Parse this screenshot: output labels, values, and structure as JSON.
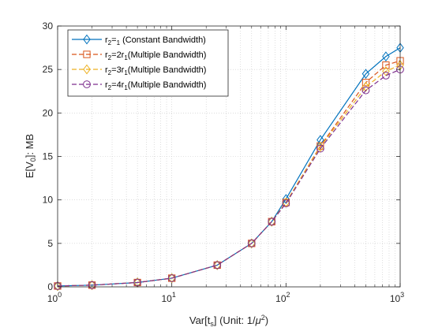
{
  "chart_data": {
    "type": "line",
    "x_scale": "log",
    "xlim": [
      1,
      1000
    ],
    "ylim": [
      0,
      30
    ],
    "x_ticks": [
      1,
      10,
      100,
      1000
    ],
    "x_tick_labels": [
      {
        "base": "10",
        "exp": "0"
      },
      {
        "base": "10",
        "exp": "1"
      },
      {
        "base": "10",
        "exp": "2"
      },
      {
        "base": "10",
        "exp": "3"
      }
    ],
    "y_ticks": [
      0,
      5,
      10,
      15,
      20,
      25,
      30
    ],
    "grid": true,
    "legend_position": "top-left",
    "xlabel": {
      "pre": "Var[t",
      "sub": "s",
      "mid": "] (Unit: 1/",
      "mu": "μ",
      "sup": "2",
      "post": ")"
    },
    "ylabel": {
      "pre": "E[V",
      "sub": "0",
      "post": "]: MB"
    },
    "x": [
      1,
      2,
      5,
      10,
      25,
      50,
      75,
      100,
      200,
      500,
      750,
      1000
    ],
    "series": [
      {
        "name_parts": {
          "r": "r",
          "s2": "2",
          "eq": "=",
          "coef": "",
          "s1": "1",
          "rest": " (Constant Bandwidth)"
        },
        "color": "#0072BD",
        "dash": "solid",
        "marker": "diamond",
        "values": [
          0.1,
          0.2,
          0.5,
          1.0,
          2.5,
          5.0,
          7.5,
          10.1,
          16.9,
          24.5,
          26.5,
          27.5
        ]
      },
      {
        "name_parts": {
          "r": "r",
          "s2": "2",
          "eq": "=",
          "coef": "2r",
          "s1": "1",
          "rest": "(Multiple Bandwidth)"
        },
        "color": "#D95319",
        "dash": "dashed",
        "marker": "square",
        "values": [
          0.1,
          0.2,
          0.5,
          1.0,
          2.5,
          5.0,
          7.5,
          9.7,
          16.2,
          23.5,
          25.5,
          26.0
        ]
      },
      {
        "name_parts": {
          "r": "r",
          "s2": "2",
          "eq": "=",
          "coef": "3r",
          "s1": "1",
          "rest": "(Multiple Bandwidth)"
        },
        "color": "#EDB120",
        "dash": "dashed",
        "marker": "diamond",
        "values": [
          0.1,
          0.2,
          0.5,
          1.0,
          2.5,
          5.0,
          7.5,
          9.7,
          16.1,
          23.0,
          24.8,
          25.5
        ]
      },
      {
        "name_parts": {
          "r": "r",
          "s2": "2",
          "eq": "=",
          "coef": "4r",
          "s1": "1",
          "rest": "(Multiple Bandwidth)"
        },
        "color": "#7E2F8E",
        "dash": "dashed",
        "marker": "circle",
        "values": [
          0.1,
          0.2,
          0.5,
          1.0,
          2.5,
          5.0,
          7.5,
          9.6,
          15.9,
          22.6,
          24.3,
          25.0
        ]
      }
    ]
  }
}
